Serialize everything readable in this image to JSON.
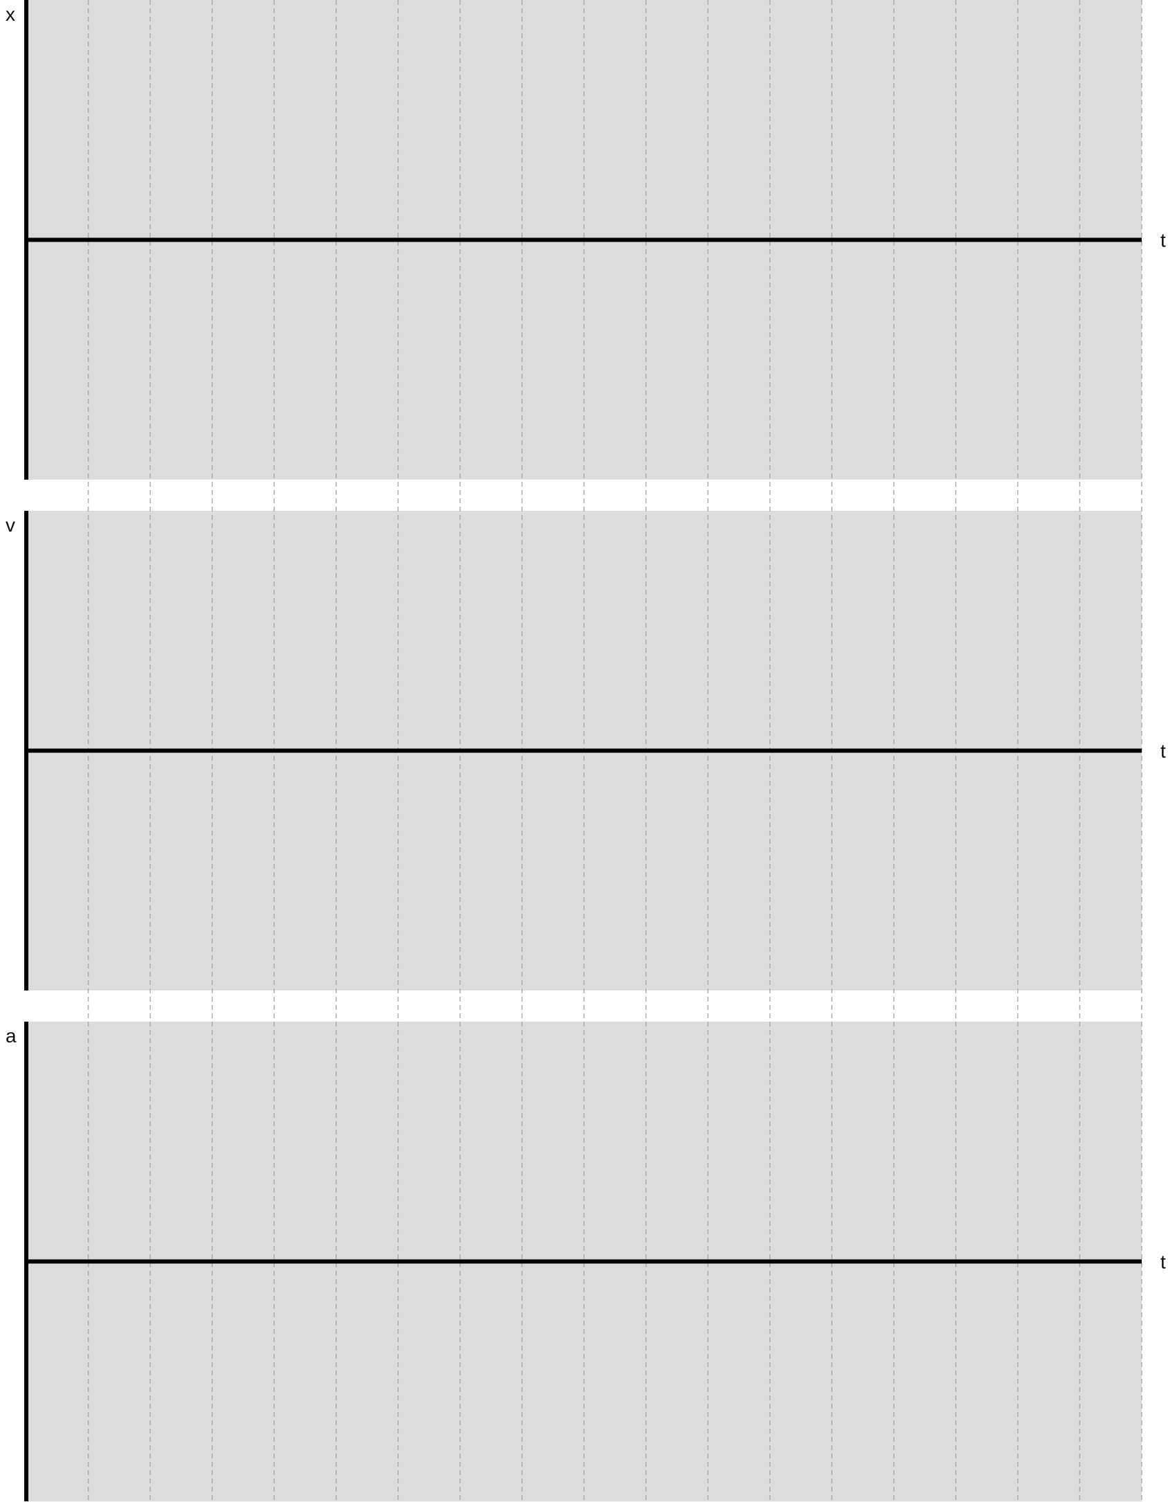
{
  "colors": {
    "panel_fill": "#dcdcdc",
    "axis": "#000000",
    "grid": "#a8a8a8",
    "background": "#ffffff"
  },
  "grid": {
    "vertical_lines": 18,
    "style": "dashed"
  },
  "panels": [
    {
      "id": "position",
      "y_label": "x",
      "x_label": "t"
    },
    {
      "id": "velocity",
      "y_label": "v",
      "x_label": "t"
    },
    {
      "id": "acceleration",
      "y_label": "a",
      "x_label": "t"
    }
  ]
}
